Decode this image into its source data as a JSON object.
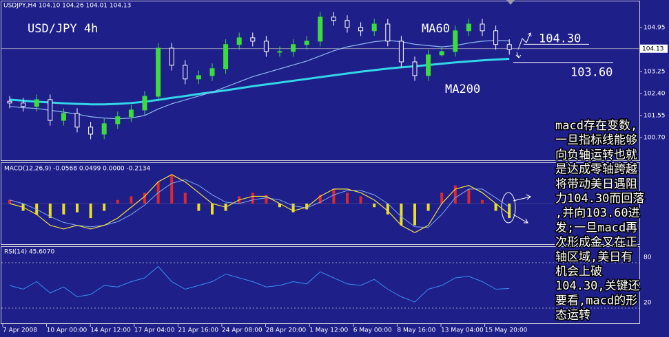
{
  "header": "USDJPY,H4 104.10 104.26 104.01 104.13",
  "chart_data": [
    {
      "type": "candlestick",
      "title": "USD/JPY 4h",
      "ylim": [
        99.82,
        106.01
      ],
      "yticks": [
        {
          "value": 104.95,
          "label": "104.95"
        },
        {
          "value": 103.25,
          "label": "103.25"
        },
        {
          "value": 102.4,
          "label": "102.40"
        },
        {
          "value": 101.55,
          "label": "101.55"
        },
        {
          "value": 100.7,
          "label": "100.70"
        }
      ],
      "last_price": {
        "value": 104.13,
        "label": "104.13"
      },
      "up_color": "#3ddc3d",
      "down_color": "#ffffff",
      "candles": [
        {
          "o": 102.1,
          "h": 102.3,
          "l": 101.83,
          "c": 102.03
        },
        {
          "o": 102.03,
          "h": 102.23,
          "l": 101.7,
          "c": 101.9
        },
        {
          "o": 101.9,
          "h": 102.36,
          "l": 101.7,
          "c": 102.16
        },
        {
          "o": 102.16,
          "h": 102.36,
          "l": 101.16,
          "c": 101.36
        },
        {
          "o": 101.36,
          "h": 101.83,
          "l": 101.16,
          "c": 101.63
        },
        {
          "o": 101.63,
          "h": 101.83,
          "l": 100.9,
          "c": 101.1
        },
        {
          "o": 101.1,
          "h": 101.3,
          "l": 100.63,
          "c": 100.83
        },
        {
          "o": 100.83,
          "h": 101.43,
          "l": 100.63,
          "c": 101.23
        },
        {
          "o": 101.23,
          "h": 101.7,
          "l": 101.03,
          "c": 101.5
        },
        {
          "o": 101.5,
          "h": 101.96,
          "l": 101.3,
          "c": 101.76
        },
        {
          "o": 101.76,
          "h": 102.49,
          "l": 101.56,
          "c": 102.29
        },
        {
          "o": 102.29,
          "h": 104.35,
          "l": 102.09,
          "c": 104.15
        },
        {
          "o": 104.15,
          "h": 104.35,
          "l": 103.29,
          "c": 103.49
        },
        {
          "o": 103.49,
          "h": 103.69,
          "l": 102.76,
          "c": 102.96
        },
        {
          "o": 102.96,
          "h": 103.29,
          "l": 102.76,
          "c": 103.09
        },
        {
          "o": 103.09,
          "h": 103.56,
          "l": 102.89,
          "c": 103.36
        },
        {
          "o": 103.36,
          "h": 104.49,
          "l": 103.16,
          "c": 104.29
        },
        {
          "o": 104.29,
          "h": 104.75,
          "l": 104.09,
          "c": 104.55
        },
        {
          "o": 104.55,
          "h": 104.75,
          "l": 104.22,
          "c": 104.42
        },
        {
          "o": 104.42,
          "h": 104.62,
          "l": 103.82,
          "c": 104.02
        },
        {
          "o": 104.02,
          "h": 104.22,
          "l": 103.82,
          "c": 104.02
        },
        {
          "o": 104.02,
          "h": 104.49,
          "l": 103.82,
          "c": 104.29
        },
        {
          "o": 104.29,
          "h": 104.62,
          "l": 104.09,
          "c": 104.42
        },
        {
          "o": 104.42,
          "h": 105.55,
          "l": 104.22,
          "c": 105.35
        },
        {
          "o": 105.35,
          "h": 105.55,
          "l": 105.02,
          "c": 105.22
        },
        {
          "o": 105.22,
          "h": 105.42,
          "l": 104.75,
          "c": 104.95
        },
        {
          "o": 104.95,
          "h": 105.15,
          "l": 104.62,
          "c": 104.82
        },
        {
          "o": 104.82,
          "h": 105.28,
          "l": 104.62,
          "c": 105.08
        },
        {
          "o": 105.08,
          "h": 105.28,
          "l": 104.22,
          "c": 104.42
        },
        {
          "o": 104.42,
          "h": 104.62,
          "l": 103.42,
          "c": 103.62
        },
        {
          "o": 103.62,
          "h": 103.82,
          "l": 102.89,
          "c": 103.09
        },
        {
          "o": 103.09,
          "h": 104.09,
          "l": 102.89,
          "c": 103.89
        },
        {
          "o": 103.89,
          "h": 104.22,
          "l": 103.82,
          "c": 104.02
        },
        {
          "o": 104.02,
          "h": 105.02,
          "l": 103.82,
          "c": 104.82
        },
        {
          "o": 104.82,
          "h": 105.28,
          "l": 104.62,
          "c": 105.08
        },
        {
          "o": 105.08,
          "h": 105.28,
          "l": 104.62,
          "c": 104.82
        },
        {
          "o": 104.82,
          "h": 105.02,
          "l": 104.09,
          "c": 104.29
        },
        {
          "o": 104.29,
          "h": 104.49,
          "l": 103.9,
          "c": 104.1
        }
      ],
      "series": [
        {
          "name": "MA200",
          "color": "#33d6e8",
          "values": [
            102.16,
            102.12,
            102.08,
            102.05,
            102.02,
            102.0,
            101.98,
            101.98,
            102.0,
            102.03,
            102.08,
            102.15,
            102.23,
            102.3,
            102.38,
            102.45,
            102.52,
            102.6,
            102.68,
            102.75,
            102.82,
            102.89,
            102.96,
            103.03,
            103.1,
            103.17,
            103.24,
            103.3,
            103.36,
            103.41,
            103.45,
            103.5,
            103.55,
            103.6,
            103.64,
            103.68,
            103.71,
            103.74
          ]
        },
        {
          "name": "MA60",
          "color": "#8fb8f0",
          "values": [
            101.9,
            101.85,
            101.82,
            101.75,
            101.68,
            101.6,
            101.5,
            101.45,
            101.42,
            101.45,
            101.55,
            101.8,
            102.0,
            102.15,
            102.3,
            102.45,
            102.65,
            102.85,
            103.05,
            103.2,
            103.35,
            103.5,
            103.65,
            103.85,
            104.05,
            104.2,
            104.3,
            104.4,
            104.45,
            104.4,
            104.3,
            104.25,
            104.2,
            104.25,
            104.35,
            104.42,
            104.45,
            104.43
          ]
        }
      ],
      "levels": [
        {
          "value": 104.3,
          "label": "104.30"
        },
        {
          "value": 103.6,
          "label": "103.60"
        }
      ]
    },
    {
      "type": "macd",
      "title": "MACD(12,26,9) -0.0568 0.0499 0.0000 -0.2134",
      "ylim": [
        -0.55,
        0.55
      ],
      "pos_color": "#e02828",
      "neg_color": "#e8e020",
      "line_color": "#f0e040",
      "signal_color": "#7fa8f0",
      "histogram": [
        0.05,
        -0.1,
        -0.15,
        -0.2,
        -0.15,
        -0.12,
        -0.2,
        -0.1,
        0.05,
        0.1,
        0.15,
        0.3,
        0.4,
        0.15,
        -0.1,
        -0.15,
        -0.1,
        0.1,
        0.15,
        0.12,
        -0.05,
        -0.12,
        -0.08,
        0.12,
        0.2,
        0.15,
        0.1,
        -0.05,
        -0.15,
        -0.3,
        -0.3,
        -0.1,
        0.15,
        0.25,
        0.2,
        0.05,
        -0.1,
        -0.2
      ],
      "macd_line": [
        0.0,
        -0.05,
        -0.15,
        -0.3,
        -0.35,
        -0.3,
        -0.35,
        -0.3,
        -0.2,
        -0.05,
        0.1,
        0.3,
        0.4,
        0.3,
        0.15,
        0.0,
        -0.05,
        0.05,
        0.1,
        0.1,
        0.0,
        -0.1,
        -0.05,
        0.1,
        0.2,
        0.2,
        0.15,
        0.05,
        -0.1,
        -0.3,
        -0.4,
        -0.3,
        0.0,
        0.2,
        0.25,
        0.15,
        0.0,
        -0.15
      ],
      "signal_line": [
        0.05,
        0.0,
        -0.08,
        -0.18,
        -0.26,
        -0.3,
        -0.32,
        -0.3,
        -0.25,
        -0.15,
        -0.02,
        0.15,
        0.28,
        0.33,
        0.25,
        0.12,
        0.02,
        0.0,
        0.05,
        0.08,
        0.05,
        -0.03,
        -0.06,
        0.02,
        0.12,
        0.18,
        0.18,
        0.12,
        0.0,
        -0.18,
        -0.32,
        -0.33,
        -0.15,
        0.08,
        0.2,
        0.2,
        0.08,
        -0.05
      ]
    },
    {
      "type": "rsi",
      "title": "RSI(14) 45.6070",
      "ylim": [
        0,
        100
      ],
      "yticks": [
        20,
        80
      ],
      "color": "#3a8ef0",
      "values": [
        50,
        45,
        55,
        40,
        48,
        35,
        38,
        50,
        48,
        55,
        60,
        75,
        55,
        45,
        50,
        55,
        65,
        60,
        55,
        48,
        50,
        55,
        52,
        68,
        60,
        52,
        50,
        58,
        45,
        35,
        28,
        45,
        50,
        60,
        62,
        55,
        45,
        46
      ]
    }
  ],
  "x_labels": [
    "7 Apr 2008",
    "10 Apr 00:00",
    "14 Apr 12:00",
    "17 Apr 04:00",
    "21 Apr 16:00",
    "24 Apr 08:00",
    "28 Apr 20:00",
    "1 May 12:00",
    "6 May 00:00",
    "8 May 16:00",
    "13 May 04:00",
    "15 May 20:00"
  ],
  "annotation": [
    "macd存在变数,",
    "一旦指标线能够",
    "向负轴运转也就",
    "是达成零轴跨越",
    "将带动美日遇阻",
    "力104.30而回落",
    ",并向103.60进",
    "发;一旦macd再",
    "次形成金叉在正",
    "轴区域,美日有",
    "机会上破",
    "104.30,关键还",
    "要看,macd的形",
    "态运转"
  ]
}
